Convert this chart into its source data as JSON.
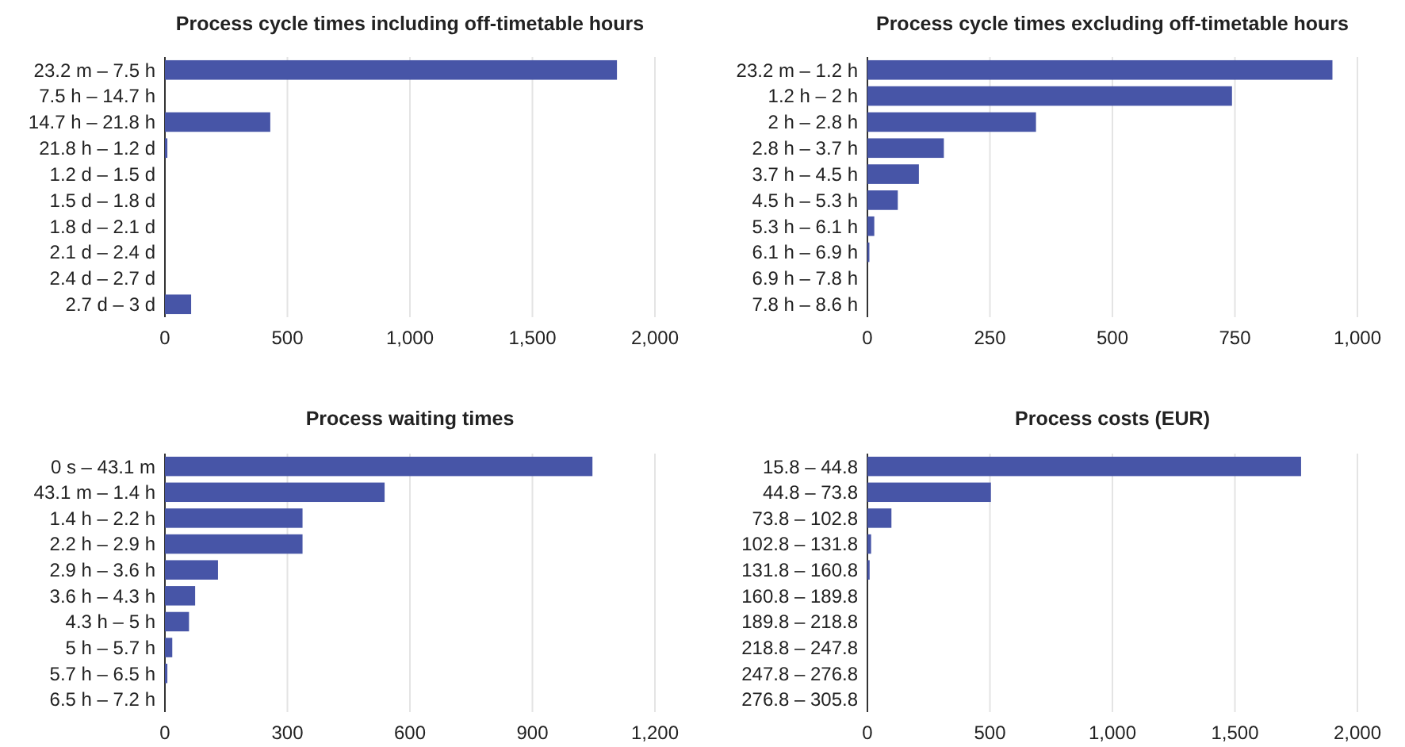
{
  "chart_data": [
    {
      "type": "bar",
      "orientation": "horizontal",
      "title": "Process cycle times including off-timetable hours",
      "categories": [
        "23.2 m – 7.5 h",
        "7.5 h – 14.7 h",
        "14.7 h – 21.8 h",
        "21.8 h – 1.2 d",
        "1.2 d – 1.5 d",
        "1.5 d – 1.8 d",
        "1.8 d – 2.1 d",
        "2.1 d – 2.4 d",
        "2.4 d – 2.7 d",
        "2.7 d – 3 d"
      ],
      "values": [
        1845,
        0,
        430,
        10,
        0,
        0,
        0,
        0,
        0,
        107
      ],
      "color": "#4755a7",
      "xlim": [
        0,
        2000
      ],
      "xticks": [
        0,
        500,
        {
          "value": 1000,
          "label": "1,000"
        },
        {
          "value": 1500,
          "label": "1,500"
        },
        {
          "value": 2000,
          "label": "2,000"
        }
      ],
      "grid": "x"
    },
    {
      "type": "bar",
      "orientation": "horizontal",
      "title": "Process cycle times excluding off-timetable hours",
      "categories": [
        "23.2 m – 1.2 h",
        "1.2 h – 2 h",
        "2 h – 2.8 h",
        "2.8 h – 3.7 h",
        "3.7 h – 4.5 h",
        "4.5 h – 5.3 h",
        "5.3 h – 6.1 h",
        "6.1 h – 6.9 h",
        "6.9 h – 7.8 h",
        "7.8 h – 8.6 h"
      ],
      "values": [
        949,
        744,
        344,
        156,
        105,
        62,
        14,
        4,
        0,
        0
      ],
      "color": "#4755a7",
      "xlim": [
        0,
        1000
      ],
      "xticks": [
        0,
        250,
        500,
        750,
        {
          "value": 1000,
          "label": "1,000"
        }
      ],
      "grid": "x"
    },
    {
      "type": "bar",
      "orientation": "horizontal",
      "title": "Process waiting times",
      "categories": [
        "0 s – 43.1 m",
        "43.1 m – 1.4 h",
        "1.4 h – 2.2 h",
        "2.2 h – 2.9 h",
        "2.9 h – 3.6 h",
        "3.6 h – 4.3 h",
        "4.3 h – 5 h",
        "5 h – 5.7 h",
        "5.7 h – 6.5 h",
        "6.5 h – 7.2 h"
      ],
      "values": [
        1047,
        538,
        337,
        337,
        130,
        74,
        59,
        18,
        6,
        0
      ],
      "color": "#4755a7",
      "xlim": [
        0,
        1200
      ],
      "xticks": [
        0,
        300,
        600,
        900,
        {
          "value": 1200,
          "label": "1,200"
        }
      ],
      "grid": "x"
    },
    {
      "type": "bar",
      "orientation": "horizontal",
      "title": "Process costs (EUR)",
      "categories": [
        "15.8 – 44.8",
        "44.8 – 73.8",
        "73.8 – 102.8",
        "102.8 – 131.8",
        "131.8 – 160.8",
        "160.8 – 189.8",
        "189.8 – 218.8",
        "218.8 – 247.8",
        "247.8 – 276.8",
        "276.8 – 305.8"
      ],
      "values": [
        1770,
        504,
        98,
        15,
        9,
        0,
        0,
        0,
        0,
        0
      ],
      "color": "#4755a7",
      "xlim": [
        0,
        2000
      ],
      "xticks": [
        0,
        500,
        {
          "value": 1000,
          "label": "1,000"
        },
        {
          "value": 1500,
          "label": "1,500"
        },
        {
          "value": 2000,
          "label": "2,000"
        }
      ],
      "grid": "x"
    }
  ]
}
